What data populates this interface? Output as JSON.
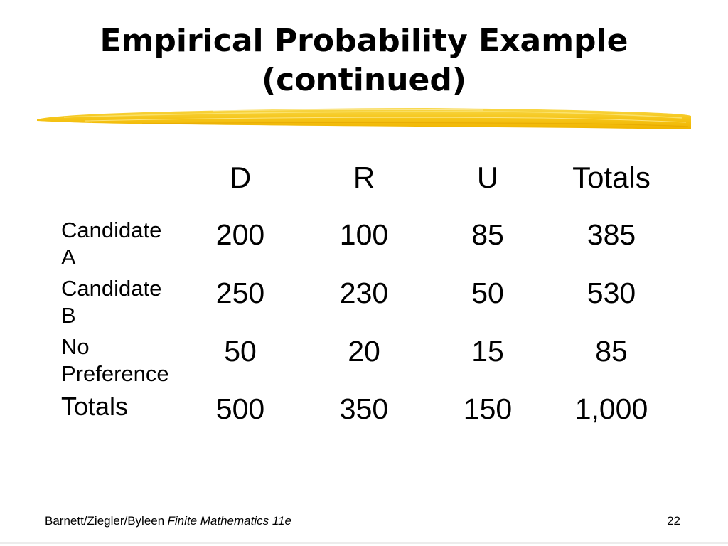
{
  "slide": {
    "title_line1": "Empirical Probability Example",
    "title_line2": "(continued)",
    "brush_color": "#f5c518",
    "footer": {
      "authors": "Barnett/Ziegler/Byleen",
      "book": "Finite Mathematics 11e",
      "page": "22"
    }
  },
  "table": {
    "column_headers": [
      "D",
      "R",
      "U",
      "Totals"
    ],
    "rows": [
      {
        "label": "Candidate A",
        "values": [
          "200",
          "100",
          "85",
          "385"
        ]
      },
      {
        "label": "Candidate B",
        "values": [
          "250",
          "230",
          "50",
          "530"
        ]
      },
      {
        "label": "No Preference",
        "values": [
          "50",
          "20",
          "15",
          "85"
        ]
      },
      {
        "label": "Totals",
        "values": [
          "500",
          "350",
          "150",
          "1,000"
        ]
      }
    ]
  }
}
